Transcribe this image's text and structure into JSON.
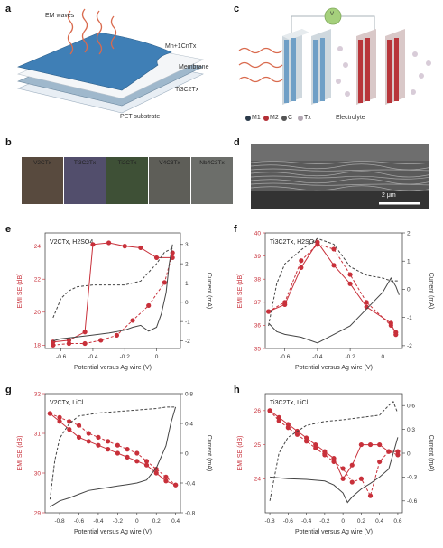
{
  "panels": {
    "a": {
      "letter": "a",
      "labels": {
        "waves": "EM waves",
        "mxene_top": "Mn+1CnTx",
        "membrane": "Membrane",
        "ti3c2": "Ti3C2Tx",
        "substrate": "PET substrate"
      }
    },
    "b": {
      "letter": "b",
      "samples": [
        {
          "label": "V2CTx",
          "color": "#584a3e"
        },
        {
          "label": "Ti3C2Tx",
          "color": "#524e6c"
        },
        {
          "label": "Ti2CTx",
          "color": "#3e5036"
        },
        {
          "label": "V4C3Tx",
          "color": "#5e5e58"
        },
        {
          "label": "Nb4C3Tx",
          "color": "#6c6e6a"
        }
      ]
    },
    "c": {
      "letter": "c",
      "battery_symbol": "V",
      "legend": [
        {
          "label": "M1",
          "color": "#2b3a4a"
        },
        {
          "label": "M2",
          "color": "#b32f36"
        },
        {
          "label": "C",
          "color": "#555555"
        },
        {
          "label": "Tx",
          "color": "#b4a8b4"
        }
      ],
      "electrolyte": "Electrolyte",
      "colors": {
        "blue_stack": "#6f9fc6",
        "red_stack": "#b8353a",
        "wave": "#d96a4e",
        "battery": "#a5d07c"
      }
    },
    "d": {
      "letter": "d",
      "scale_bar": "2 μm"
    }
  },
  "chart_data": [
    {
      "panel": "e",
      "type": "line",
      "annotation": "V2CTx, H2SO4",
      "xlabel": "Potential versus Ag wire (V)",
      "ylabel_left": "EMI SE (dB)",
      "ylabel_right": "Current (mA)",
      "xlim": [
        -0.7,
        0.15
      ],
      "ylim_left": [
        17.8,
        24.8
      ],
      "ylim_right": [
        -2.4,
        3.6
      ],
      "xticks": [
        -0.6,
        -0.4,
        -0.2,
        0.0
      ],
      "xticklabels": [
        "-0.6",
        "-0.4",
        "-0.2",
        "0"
      ],
      "yticks_left": [
        18,
        20,
        22,
        24
      ],
      "yticks_right": [
        -2,
        -1,
        0,
        1,
        2,
        3
      ],
      "yticklabels_right": [
        "-2",
        "-1",
        "0",
        "1",
        "2",
        "3"
      ],
      "series": [
        {
          "style": "solid-markers",
          "x": [
            -0.65,
            -0.55,
            -0.45,
            -0.4,
            -0.3,
            -0.2,
            -0.1,
            0.0,
            0.1
          ],
          "y": [
            18.2,
            18.3,
            18.8,
            24.1,
            24.2,
            24.0,
            23.9,
            23.3,
            23.3
          ]
        },
        {
          "style": "dashed-markers",
          "x": [
            -0.65,
            -0.55,
            -0.45,
            -0.35,
            -0.25,
            -0.15,
            -0.05,
            0.05,
            0.1
          ],
          "y": [
            18.0,
            18.1,
            18.1,
            18.3,
            18.6,
            19.5,
            20.4,
            21.8,
            23.6
          ]
        },
        {
          "style": "solid-current",
          "x": [
            -0.65,
            -0.6,
            -0.5,
            -0.4,
            -0.3,
            -0.2,
            -0.15,
            -0.1,
            -0.05,
            0.0,
            0.03,
            0.06,
            0.08,
            0.1
          ],
          "y": [
            -2.0,
            -1.9,
            -1.8,
            -1.7,
            -1.6,
            -1.45,
            -1.3,
            -1.2,
            -1.5,
            -1.3,
            -0.6,
            0.5,
            2.0,
            3.0
          ]
        },
        {
          "style": "dashed-current",
          "x": [
            -0.65,
            -0.6,
            -0.55,
            -0.5,
            -0.4,
            -0.3,
            -0.2,
            -0.1,
            0.0,
            0.05,
            0.1
          ],
          "y": [
            -0.8,
            0.2,
            0.6,
            0.8,
            0.9,
            0.9,
            0.9,
            1.1,
            2.0,
            2.6,
            2.8
          ]
        }
      ]
    },
    {
      "panel": "f",
      "type": "line",
      "annotation": "Ti3C2Tx, H2SO4",
      "xlabel": "Potential versus Ag wire (V)",
      "ylabel_left": "EMI SE (dB)",
      "ylabel_right": "Current (mA)",
      "xlim": [
        -0.72,
        0.12
      ],
      "ylim_left": [
        35,
        40
      ],
      "ylim_right": [
        -2.1,
        2.0
      ],
      "xticks": [
        -0.6,
        -0.4,
        -0.2,
        0.0
      ],
      "xticklabels": [
        "-0.6",
        "-0.4",
        "-0.2",
        "0"
      ],
      "yticks_left": [
        35,
        36,
        37,
        38,
        39,
        40
      ],
      "yticks_right": [
        -2,
        -1,
        0,
        1,
        2
      ],
      "yticklabels_right": [
        "-2",
        "-1",
        "0",
        "1",
        "2"
      ],
      "series": [
        {
          "style": "solid-markers",
          "x": [
            -0.7,
            -0.6,
            -0.5,
            -0.4,
            -0.3,
            -0.2,
            -0.1,
            0.05,
            0.08
          ],
          "y": [
            36.6,
            36.9,
            38.5,
            39.6,
            38.6,
            37.8,
            36.8,
            36.1,
            35.6
          ]
        },
        {
          "style": "dashed-markers",
          "x": [
            -0.7,
            -0.6,
            -0.5,
            -0.4,
            -0.3,
            -0.2,
            -0.1,
            0.05,
            0.08
          ],
          "y": [
            36.6,
            37.0,
            38.8,
            39.5,
            39.3,
            38.2,
            37.0,
            36.0,
            35.7
          ]
        },
        {
          "style": "solid-current",
          "x": [
            -0.7,
            -0.65,
            -0.6,
            -0.5,
            -0.4,
            -0.3,
            -0.2,
            -0.1,
            0.0,
            0.05,
            0.08,
            0.1
          ],
          "y": [
            -1.2,
            -1.5,
            -1.6,
            -1.7,
            -1.9,
            -1.6,
            -1.3,
            -0.7,
            -0.1,
            0.4,
            0.1,
            -0.2
          ]
        },
        {
          "style": "dashed-current",
          "x": [
            -0.7,
            -0.65,
            -0.6,
            -0.5,
            -0.4,
            -0.3,
            -0.2,
            -0.1,
            0.0,
            0.05,
            0.1
          ],
          "y": [
            -1.3,
            0.2,
            0.9,
            1.4,
            1.8,
            1.6,
            0.8,
            0.5,
            0.4,
            0.3,
            0.3
          ]
        }
      ]
    },
    {
      "panel": "g",
      "type": "line",
      "annotation": "V2CTx, LiCl",
      "xlabel": "Potential versus Ag wire (V)",
      "ylabel_left": "EMI SE (dB)",
      "ylabel_right": "Current (mA)",
      "xlim": [
        -0.95,
        0.45
      ],
      "ylim_left": [
        29,
        32
      ],
      "ylim_right": [
        -0.8,
        0.8
      ],
      "xticks": [
        -0.8,
        -0.6,
        -0.4,
        -0.2,
        0.0,
        0.2,
        0.4
      ],
      "xticklabels": [
        "-0.8",
        "-0.6",
        "-0.4",
        "-0.2",
        "0",
        "0.2",
        "0.4"
      ],
      "yticks_left": [
        29,
        30,
        31,
        32
      ],
      "yticks_right": [
        -0.8,
        -0.4,
        0,
        0.4,
        0.8
      ],
      "yticklabels_right": [
        "-0.8",
        "-0.4",
        "0",
        "0.4",
        "0.8"
      ],
      "series": [
        {
          "style": "solid-markers",
          "x": [
            -0.9,
            -0.8,
            -0.7,
            -0.6,
            -0.5,
            -0.4,
            -0.3,
            -0.2,
            -0.1,
            0.0,
            0.1,
            0.2,
            0.3,
            0.4
          ],
          "y": [
            31.5,
            31.3,
            31.1,
            30.9,
            30.8,
            30.7,
            30.6,
            30.5,
            30.4,
            30.3,
            30.2,
            30.0,
            29.8,
            29.7
          ]
        },
        {
          "style": "dashed-markers",
          "x": [
            -0.9,
            -0.8,
            -0.7,
            -0.6,
            -0.5,
            -0.4,
            -0.3,
            -0.2,
            -0.1,
            0.0,
            0.1,
            0.2,
            0.3,
            0.4
          ],
          "y": [
            31.5,
            31.4,
            31.3,
            31.2,
            31.0,
            30.9,
            30.8,
            30.7,
            30.6,
            30.5,
            30.3,
            30.1,
            29.9,
            29.7
          ]
        },
        {
          "style": "solid-current",
          "x": [
            -0.9,
            -0.8,
            -0.7,
            -0.6,
            -0.5,
            -0.4,
            -0.3,
            -0.2,
            -0.1,
            0.0,
            0.1,
            0.2,
            0.3,
            0.35,
            0.4
          ],
          "y": [
            -0.72,
            -0.64,
            -0.6,
            -0.55,
            -0.5,
            -0.48,
            -0.46,
            -0.44,
            -0.42,
            -0.4,
            -0.36,
            -0.2,
            0.1,
            0.4,
            0.62
          ]
        },
        {
          "style": "dashed-current",
          "x": [
            -0.9,
            -0.85,
            -0.8,
            -0.7,
            -0.6,
            -0.4,
            -0.2,
            0.0,
            0.2,
            0.3,
            0.4
          ],
          "y": [
            -0.62,
            -0.1,
            0.2,
            0.4,
            0.5,
            0.54,
            0.56,
            0.58,
            0.6,
            0.62,
            0.62
          ]
        }
      ]
    },
    {
      "panel": "h",
      "type": "line",
      "annotation": "Ti3C2Tx, LiCl",
      "xlabel": "Potential versus Ag wire (V)",
      "ylabel_left": "EMI SE (dB)",
      "ylabel_right": "Current (mA)",
      "xlim": [
        -0.85,
        0.65
      ],
      "ylim_left": [
        23,
        26.5
      ],
      "ylim_right": [
        -0.75,
        0.75
      ],
      "xticks": [
        -0.8,
        -0.6,
        -0.4,
        -0.2,
        0.0,
        0.2,
        0.4,
        0.6
      ],
      "xticklabels": [
        "-0.8",
        "-0.6",
        "-0.4",
        "-0.2",
        "0",
        "0.2",
        "0.4",
        "0.6"
      ],
      "yticks_left": [
        24,
        25,
        26
      ],
      "yticks_right": [
        -0.6,
        -0.3,
        0,
        0.3,
        0.6
      ],
      "yticklabels_right": [
        "-0.6",
        "-0.3",
        "0",
        "0.3",
        "0.6"
      ],
      "series": [
        {
          "style": "solid-markers",
          "x": [
            -0.8,
            -0.7,
            -0.6,
            -0.5,
            -0.4,
            -0.3,
            -0.2,
            -0.1,
            0.0,
            0.1,
            0.2,
            0.3,
            0.4,
            0.5,
            0.6
          ],
          "y": [
            26.0,
            25.8,
            25.6,
            25.4,
            25.2,
            25.0,
            24.8,
            24.6,
            24.0,
            24.4,
            25.0,
            25.0,
            25.0,
            24.8,
            24.8
          ]
        },
        {
          "style": "dashed-markers",
          "x": [
            -0.8,
            -0.7,
            -0.6,
            -0.5,
            -0.4,
            -0.3,
            -0.2,
            -0.1,
            0.0,
            0.1,
            0.2,
            0.3,
            0.4,
            0.5,
            0.6
          ],
          "y": [
            26.0,
            25.7,
            25.5,
            25.3,
            25.1,
            24.9,
            24.7,
            24.5,
            24.3,
            23.9,
            24.0,
            23.5,
            24.5,
            24.8,
            24.7
          ]
        },
        {
          "style": "solid-current",
          "x": [
            -0.8,
            -0.6,
            -0.4,
            -0.2,
            -0.1,
            0.0,
            0.05,
            0.1,
            0.2,
            0.3,
            0.4,
            0.5,
            0.55,
            0.6
          ],
          "y": [
            -0.3,
            -0.32,
            -0.33,
            -0.35,
            -0.4,
            -0.5,
            -0.62,
            -0.55,
            -0.45,
            -0.38,
            -0.3,
            -0.2,
            0.0,
            0.2
          ]
        },
        {
          "style": "dashed-current",
          "x": [
            -0.8,
            -0.7,
            -0.6,
            -0.4,
            -0.2,
            0.0,
            0.2,
            0.4,
            0.5,
            0.55,
            0.6
          ],
          "y": [
            -0.6,
            0.0,
            0.2,
            0.35,
            0.4,
            0.42,
            0.45,
            0.48,
            0.6,
            0.65,
            0.5
          ]
        }
      ]
    }
  ]
}
